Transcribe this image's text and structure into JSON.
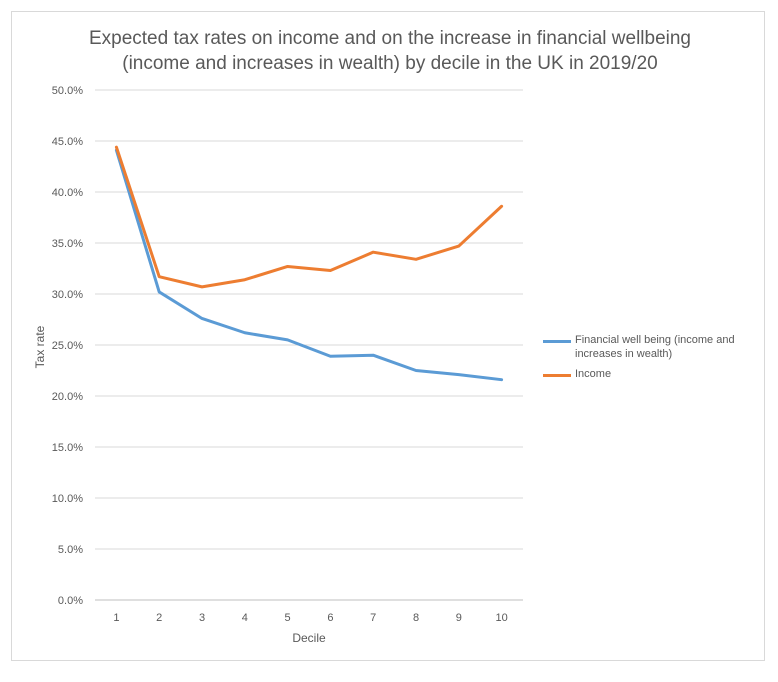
{
  "chart_data": {
    "type": "line",
    "title_line1": "Expected tax rates on income and on the increase in financial wellbeing",
    "title_line2": "(income and increases in wealth) by decile in the UK in 2019/20",
    "xlabel": "Decile",
    "ylabel": "Tax rate",
    "categories": [
      "1",
      "2",
      "3",
      "4",
      "5",
      "6",
      "7",
      "8",
      "9",
      "10"
    ],
    "ylim": [
      0,
      0.5
    ],
    "yticks": [
      "0.0%",
      "5.0%",
      "10.0%",
      "15.0%",
      "20.0%",
      "25.0%",
      "30.0%",
      "35.0%",
      "40.0%",
      "45.0%",
      "50.0%"
    ],
    "grid": true,
    "legend_position": "right",
    "series": [
      {
        "name": "Financial well being (income and increases in wealth)",
        "color": "#5b9bd5",
        "values": [
          0.441,
          0.302,
          0.276,
          0.262,
          0.255,
          0.239,
          0.24,
          0.225,
          0.221,
          0.216
        ]
      },
      {
        "name": "Income",
        "color": "#ed7d31",
        "values": [
          0.444,
          0.317,
          0.307,
          0.314,
          0.327,
          0.323,
          0.341,
          0.334,
          0.347,
          0.386
        ]
      }
    ]
  }
}
